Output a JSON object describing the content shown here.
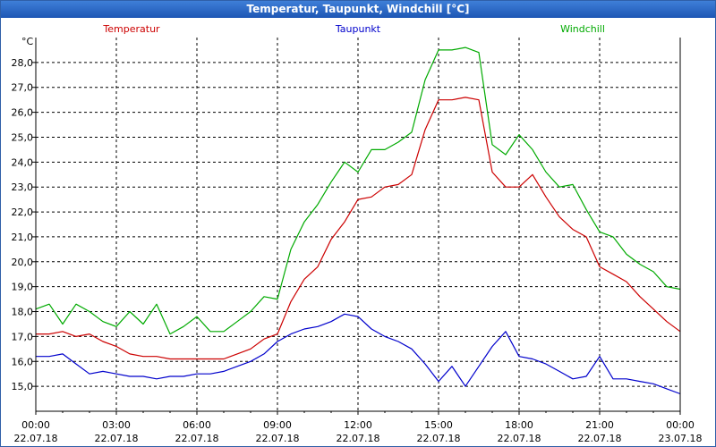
{
  "window": {
    "title": "Temperatur, Taupunkt, Windchill [°C]"
  },
  "chart_data": {
    "type": "line",
    "title": "Temperatur, Taupunkt, Windchill [°C]",
    "ylabel": "°C",
    "xlabel": "",
    "grid": true,
    "ylim": [
      14.0,
      29.0
    ],
    "xlim_hours": [
      0,
      24
    ],
    "y_ticks": [
      "15,0",
      "16,0",
      "17,0",
      "18,0",
      "19,0",
      "20,0",
      "21,0",
      "22,0",
      "23,0",
      "24,0",
      "25,0",
      "26,0",
      "27,0",
      "28,0"
    ],
    "y_tick_values": [
      15,
      16,
      17,
      18,
      19,
      20,
      21,
      22,
      23,
      24,
      25,
      26,
      27,
      28
    ],
    "x_ticks": [
      {
        "hour": 0,
        "time": "00:00",
        "date": "22.07.18"
      },
      {
        "hour": 3,
        "time": "03:00",
        "date": "22.07.18"
      },
      {
        "hour": 6,
        "time": "06:00",
        "date": "22.07.18"
      },
      {
        "hour": 9,
        "time": "09:00",
        "date": "22.07.18"
      },
      {
        "hour": 12,
        "time": "12:00",
        "date": "22.07.18"
      },
      {
        "hour": 15,
        "time": "15:00",
        "date": "22.07.18"
      },
      {
        "hour": 18,
        "time": "18:00",
        "date": "22.07.18"
      },
      {
        "hour": 21,
        "time": "21:00",
        "date": "22.07.18"
      },
      {
        "hour": 24,
        "time": "00:00",
        "date": "23.07.18"
      }
    ],
    "series": [
      {
        "name": "Temperatur",
        "color": "#cc0000",
        "x": [
          0,
          0.5,
          1,
          1.5,
          2,
          2.5,
          3,
          3.5,
          4,
          4.5,
          5,
          5.5,
          6,
          6.5,
          7,
          7.5,
          8,
          8.5,
          9,
          9.5,
          10,
          10.5,
          11,
          11.5,
          12,
          12.5,
          13,
          13.5,
          14,
          14.5,
          15,
          15.5,
          16,
          16.5,
          17,
          17.5,
          18,
          18.5,
          19,
          19.5,
          20,
          20.5,
          21,
          21.5,
          22,
          22.5,
          23,
          23.5,
          24
        ],
        "values": [
          17.1,
          17.1,
          17.2,
          17.0,
          17.1,
          16.8,
          16.6,
          16.3,
          16.2,
          16.2,
          16.1,
          16.1,
          16.1,
          16.1,
          16.1,
          16.3,
          16.5,
          16.9,
          17.1,
          18.4,
          19.3,
          19.8,
          20.9,
          21.6,
          22.5,
          22.6,
          23.0,
          23.1,
          23.5,
          25.3,
          26.5,
          26.5,
          26.6,
          26.5,
          23.6,
          23.0,
          23.0,
          23.5,
          22.6,
          21.8,
          21.3,
          21.0,
          19.8,
          19.5,
          19.2,
          18.6,
          18.1,
          17.6,
          17.2
        ]
      },
      {
        "name": "Taupunkt",
        "color": "#0000cc",
        "x": [
          0,
          0.5,
          1,
          1.5,
          2,
          2.5,
          3,
          3.5,
          4,
          4.5,
          5,
          5.5,
          6,
          6.5,
          7,
          7.5,
          8,
          8.5,
          9,
          9.5,
          10,
          10.5,
          11,
          11.5,
          12,
          12.5,
          13,
          13.5,
          14,
          14.5,
          15,
          15.5,
          16,
          16.5,
          17,
          17.5,
          18,
          18.5,
          19,
          19.5,
          20,
          20.5,
          21,
          21.5,
          22,
          22.5,
          23,
          23.5,
          24
        ],
        "values": [
          16.2,
          16.2,
          16.3,
          15.9,
          15.5,
          15.6,
          15.5,
          15.4,
          15.4,
          15.3,
          15.4,
          15.4,
          15.5,
          15.5,
          15.6,
          15.8,
          16.0,
          16.3,
          16.8,
          17.1,
          17.3,
          17.4,
          17.6,
          17.9,
          17.8,
          17.3,
          17.0,
          16.8,
          16.5,
          15.9,
          15.2,
          15.8,
          15.0,
          15.8,
          16.6,
          17.2,
          16.2,
          16.1,
          15.9,
          15.6,
          15.3,
          15.4,
          16.2,
          15.3,
          15.3,
          15.2,
          15.1,
          14.9,
          14.7
        ]
      },
      {
        "name": "Windchill",
        "color": "#00aa00",
        "x": [
          0,
          0.5,
          1,
          1.5,
          2,
          2.5,
          3,
          3.5,
          4,
          4.5,
          5,
          5.5,
          6,
          6.5,
          7,
          7.5,
          8,
          8.5,
          9,
          9.5,
          10,
          10.5,
          11,
          11.5,
          12,
          12.5,
          13,
          13.5,
          14,
          14.5,
          15,
          15.5,
          16,
          16.5,
          17,
          17.5,
          18,
          18.5,
          19,
          19.5,
          20,
          20.5,
          21,
          21.5,
          22,
          22.5,
          23,
          23.5,
          24
        ],
        "values": [
          18.1,
          18.3,
          17.5,
          18.3,
          18.0,
          17.6,
          17.4,
          18.0,
          17.5,
          18.3,
          17.1,
          17.4,
          17.8,
          17.2,
          17.2,
          17.6,
          18.0,
          18.6,
          18.5,
          20.5,
          21.6,
          22.3,
          23.2,
          24.0,
          23.6,
          24.5,
          24.5,
          24.8,
          25.2,
          27.3,
          28.5,
          28.5,
          28.6,
          28.4,
          24.7,
          24.3,
          25.1,
          24.5,
          23.6,
          23.0,
          23.1,
          22.1,
          21.2,
          21.0,
          20.3,
          19.9,
          19.6,
          19.0,
          18.9
        ]
      }
    ]
  }
}
